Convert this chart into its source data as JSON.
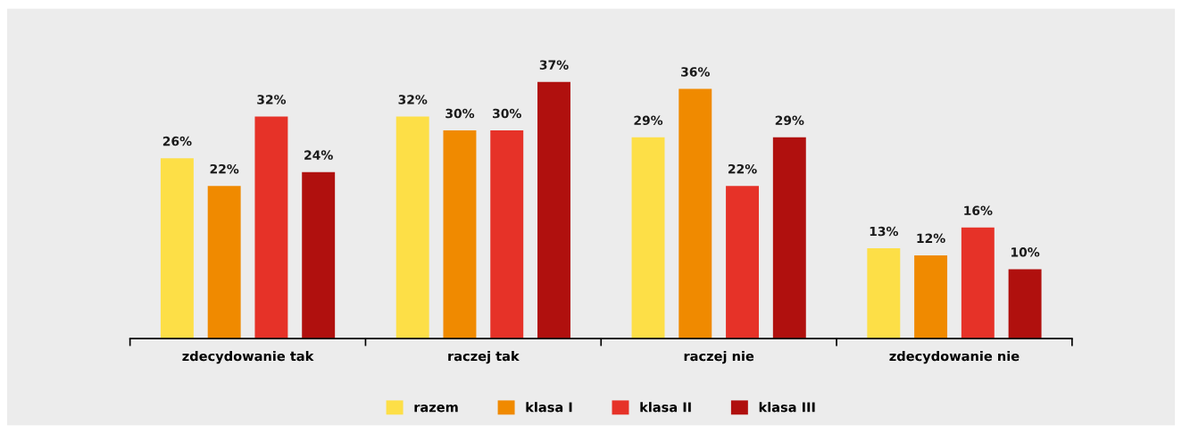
{
  "chart_data": {
    "type": "bar",
    "categories": [
      "zdecydowanie tak",
      "raczej tak",
      "raczej nie",
      "zdecydowanie nie"
    ],
    "series": [
      {
        "name": "razem",
        "color": "#fddf47",
        "values": [
          26,
          32,
          29,
          13
        ],
        "value_labels": [
          "26%",
          "32%",
          "29%",
          "13%"
        ]
      },
      {
        "name": "klasa I",
        "color": "#f08a00",
        "values": [
          22,
          30,
          36,
          12
        ],
        "value_labels": [
          "22%",
          "30%",
          "36%",
          "12%"
        ]
      },
      {
        "name": "klasa II",
        "color": "#e63228",
        "values": [
          32,
          30,
          22,
          16
        ],
        "value_labels": [
          "32%",
          "30%",
          "22%",
          "16%"
        ]
      },
      {
        "name": "klasa III",
        "color": "#b0100e",
        "values": [
          24,
          37,
          29,
          10
        ],
        "value_labels": [
          "24%",
          "37%",
          "29%",
          "10%"
        ]
      }
    ],
    "grid": false,
    "legend": "bottom"
  }
}
